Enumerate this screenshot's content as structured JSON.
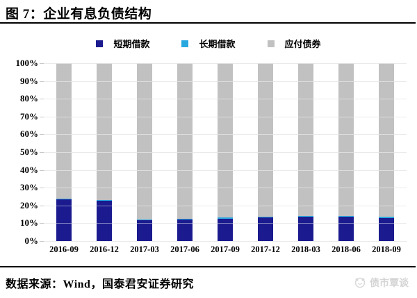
{
  "header": {
    "title": "图 7：企业有息负债结构"
  },
  "footer": {
    "source": "数据来源：Wind，国泰君安证券研究",
    "watermark": "债市覃谈"
  },
  "chart_data": {
    "type": "bar",
    "stacked": true,
    "percent_stack": true,
    "title": "企业有息负债结构",
    "categories": [
      "2016-09",
      "2016-12",
      "2017-03",
      "2017-06",
      "2017-09",
      "2017-12",
      "2018-03",
      "2018-06",
      "2018-09"
    ],
    "series": [
      {
        "name": "短期借款",
        "color": "#1b1b8f",
        "values": [
          23.5,
          22.5,
          11.8,
          12.0,
          12.6,
          13.2,
          13.5,
          13.5,
          13.0
        ]
      },
      {
        "name": "长期借款",
        "color": "#29a8e0",
        "values": [
          0.5,
          0.5,
          0.5,
          0.5,
          0.5,
          0.5,
          0.5,
          0.5,
          0.5
        ]
      },
      {
        "name": "应付债券",
        "color": "#c1c1c1",
        "values": [
          76.0,
          77.0,
          87.7,
          87.5,
          86.9,
          86.3,
          86.0,
          86.0,
          86.5
        ]
      }
    ],
    "yticks": [
      "100%",
      "90%",
      "80%",
      "70%",
      "60%",
      "50%",
      "40%",
      "30%",
      "20%",
      "10%",
      "0%"
    ],
    "ylabel": "",
    "xlabel": "",
    "ylim": [
      0,
      100
    ],
    "grid": true,
    "gridline_color": "#d9d9d9",
    "legend_position": "top"
  }
}
